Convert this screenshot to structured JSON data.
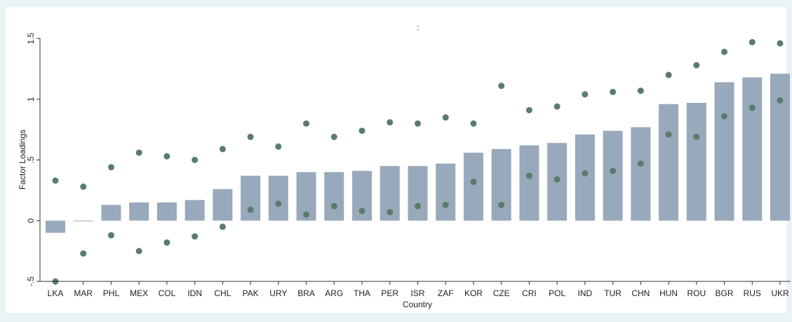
{
  "chart_data": {
    "type": "bar",
    "title": ":",
    "xlabel": "Country",
    "ylabel": "Factor Loadings",
    "categories": [
      "LKA",
      "MAR",
      "PHL",
      "MEX",
      "COL",
      "IDN",
      "CHL",
      "PAK",
      "URY",
      "BRA",
      "ARG",
      "THA",
      "PER",
      "ISR",
      "ZAF",
      "KOR",
      "CZE",
      "CRI",
      "POL",
      "IND",
      "TUR",
      "CHN",
      "HUN",
      "ROU",
      "BGR",
      "RUS",
      "UKR"
    ],
    "values": [
      -0.1,
      -0.005,
      0.13,
      0.15,
      0.15,
      0.17,
      0.26,
      0.37,
      0.37,
      0.4,
      0.4,
      0.41,
      0.45,
      0.45,
      0.47,
      0.56,
      0.59,
      0.62,
      0.64,
      0.71,
      0.74,
      0.77,
      0.96,
      0.97,
      1.14,
      1.18,
      1.21
    ],
    "color": "#98a9bb",
    "markers": [
      {
        "color": "#5b7c6d",
        "values": [
          0.33,
          0.28,
          0.44,
          0.56,
          0.53,
          0.5,
          0.59,
          0.69,
          0.61,
          0.8,
          0.69,
          0.74,
          0.81,
          0.8,
          0.85,
          0.8,
          1.11,
          0.91,
          0.94,
          1.04,
          1.06,
          1.07,
          1.2,
          1.28,
          1.39,
          1.47,
          1.46
        ]
      },
      {
        "color": "#5b7c6d",
        "values": [
          -0.5,
          -0.27,
          -0.12,
          -0.25,
          -0.18,
          -0.13,
          -0.05,
          0.09,
          0.14,
          0.05,
          0.12,
          0.08,
          0.07,
          0.12,
          0.13,
          0.32,
          0.13,
          0.37,
          0.34,
          0.39,
          0.41,
          0.47,
          0.71,
          0.69,
          0.86,
          0.93,
          0.99
        ]
      }
    ],
    "ylim": [
      -0.5,
      1.5
    ],
    "yticks": [
      {
        "value": -0.5,
        "label": "-.5"
      },
      0,
      {
        "value": 0.5,
        "label": ".5"
      },
      1,
      1.5
    ],
    "grid": false
  }
}
